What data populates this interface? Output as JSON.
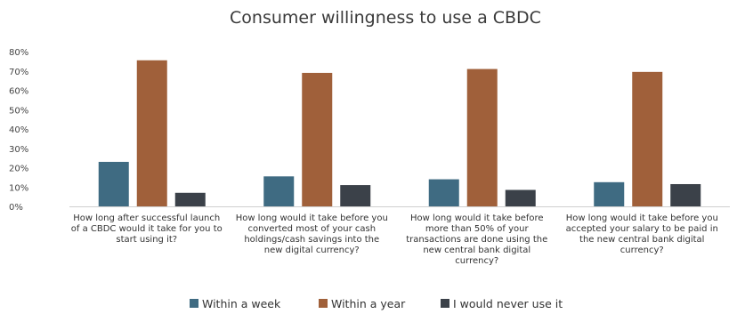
{
  "chart_data": {
    "type": "bar",
    "title": "Consumer willingness to use a CBDC",
    "xlabel": "",
    "ylabel": "",
    "ylim": [
      0,
      80
    ],
    "yticks": [
      "0%",
      "10%",
      "20%",
      "30%",
      "40%",
      "50%",
      "60%",
      "70%",
      "80%"
    ],
    "grid": false,
    "legend_position": "bottom",
    "categories": [
      "How long after successful launch of a CBDC would it take  for you to start using it?",
      "How long would it take before you converted most of your cash holdings/cash savings into the new digital currency?",
      "How long would it take before more than 50% of your transactions are done using the new central bank digital currency?",
      "How long would it take before you accepted your salary to be paid in the new central bank digital currency?"
    ],
    "category_lines": [
      [
        "How long after successful launch",
        "of a CBDC would it take  for you to",
        "start using it?"
      ],
      [
        "How long would it take before you",
        "converted most of your cash",
        "holdings/cash savings into the",
        "new digital currency?"
      ],
      [
        "How long would it take before",
        "more than 50% of your",
        "transactions are done using the",
        "new central bank digital",
        "currency?"
      ],
      [
        "How long would it take before you",
        "accepted your salary to be paid in",
        "the new central bank digital",
        "currency?"
      ]
    ],
    "series": [
      {
        "name": "Within a week",
        "color": "#3f6b82",
        "values": [
          23,
          15.5,
          14,
          12.5
        ]
      },
      {
        "name": "Within a year",
        "color": "#a0603a",
        "values": [
          75.5,
          69,
          71,
          69.5
        ]
      },
      {
        "name": "I would never use it",
        "color": "#3b4149",
        "values": [
          7,
          11,
          8.5,
          11.5
        ]
      }
    ]
  }
}
